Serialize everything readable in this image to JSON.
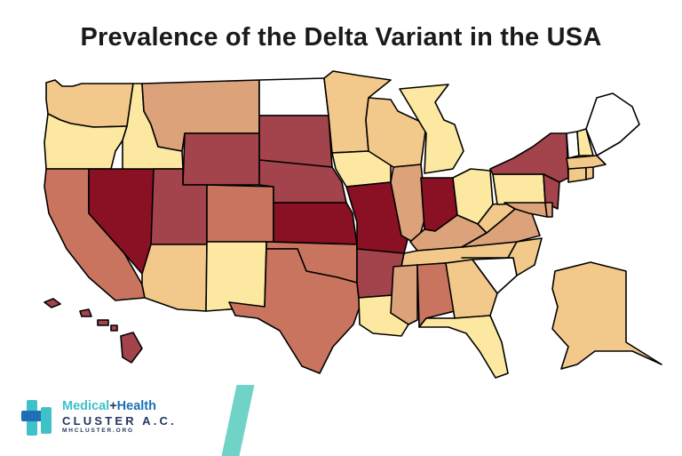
{
  "title": "Prevalence of the Delta Variant in the USA",
  "palette": {
    "none": "#ffffff",
    "low": "#fce8a0",
    "low_mid": "#f2c98a",
    "mid": "#dca27a",
    "mid_high": "#c9745e",
    "high": "#a3434b",
    "very_high": "#8a1024"
  },
  "states": [
    {
      "code": "WA",
      "level": "low_mid"
    },
    {
      "code": "OR",
      "level": "low"
    },
    {
      "code": "CA",
      "level": "mid_high"
    },
    {
      "code": "NV",
      "level": "very_high"
    },
    {
      "code": "ID",
      "level": "low"
    },
    {
      "code": "MT",
      "level": "mid"
    },
    {
      "code": "WY",
      "level": "high"
    },
    {
      "code": "UT",
      "level": "high"
    },
    {
      "code": "AZ",
      "level": "low_mid"
    },
    {
      "code": "CO",
      "level": "mid_high"
    },
    {
      "code": "NM",
      "level": "low"
    },
    {
      "code": "ND",
      "level": "none"
    },
    {
      "code": "SD",
      "level": "high"
    },
    {
      "code": "NE",
      "level": "high"
    },
    {
      "code": "KS",
      "level": "very_high"
    },
    {
      "code": "OK",
      "level": "mid_high"
    },
    {
      "code": "TX",
      "level": "mid_high"
    },
    {
      "code": "MN",
      "level": "low_mid"
    },
    {
      "code": "IA",
      "level": "low"
    },
    {
      "code": "MO",
      "level": "very_high"
    },
    {
      "code": "AR",
      "level": "high"
    },
    {
      "code": "LA",
      "level": "low"
    },
    {
      "code": "WI",
      "level": "low_mid"
    },
    {
      "code": "IL",
      "level": "mid"
    },
    {
      "code": "MI",
      "level": "low"
    },
    {
      "code": "IN",
      "level": "very_high"
    },
    {
      "code": "OH",
      "level": "low"
    },
    {
      "code": "KY",
      "level": "mid"
    },
    {
      "code": "TN",
      "level": "low_mid"
    },
    {
      "code": "MS",
      "level": "mid"
    },
    {
      "code": "AL",
      "level": "mid_high"
    },
    {
      "code": "GA",
      "level": "low_mid"
    },
    {
      "code": "FL",
      "level": "low"
    },
    {
      "code": "SC",
      "level": "none"
    },
    {
      "code": "NC",
      "level": "low_mid"
    },
    {
      "code": "VA",
      "level": "mid"
    },
    {
      "code": "WV",
      "level": "low_mid"
    },
    {
      "code": "PA",
      "level": "low"
    },
    {
      "code": "NY",
      "level": "high"
    },
    {
      "code": "NJ",
      "level": "high"
    },
    {
      "code": "DE",
      "level": "mid"
    },
    {
      "code": "MD",
      "level": "mid"
    },
    {
      "code": "CT",
      "level": "low_mid"
    },
    {
      "code": "RI",
      "level": "low_mid"
    },
    {
      "code": "MA",
      "level": "low_mid"
    },
    {
      "code": "VT",
      "level": "none"
    },
    {
      "code": "NH",
      "level": "low"
    },
    {
      "code": "ME",
      "level": "none"
    },
    {
      "code": "AK",
      "level": "low_mid"
    },
    {
      "code": "HI",
      "level": "high"
    }
  ],
  "logo": {
    "word1": "Medical",
    "plus": "+",
    "word2": "Health",
    "line2": "CLUSTER A.C.",
    "line3": "MHCLUSTER.ORG",
    "colors": {
      "teal": "#3fc1c9",
      "blue": "#1f6fb5",
      "dark": "#23365f",
      "slash": "#6fd3c7"
    }
  }
}
